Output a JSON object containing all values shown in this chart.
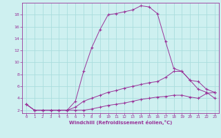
{
  "xlabel": "Windchill (Refroidissement éolien,°C)",
  "bg_color": "#cef0f0",
  "line_color": "#993399",
  "grid_color": "#aadddd",
  "xlim": [
    -0.5,
    23.5
  ],
  "ylim": [
    1.5,
    20.0
  ],
  "yticks": [
    2,
    4,
    6,
    8,
    10,
    12,
    14,
    16,
    18
  ],
  "xticks": [
    0,
    1,
    2,
    3,
    4,
    5,
    6,
    7,
    8,
    9,
    10,
    11,
    12,
    13,
    14,
    15,
    16,
    17,
    18,
    19,
    20,
    21,
    22,
    23
  ],
  "line1_x": [
    0,
    1,
    2,
    3,
    4,
    5,
    6,
    7,
    8,
    9,
    10,
    11,
    12,
    13,
    14,
    15,
    16,
    17,
    18,
    19,
    20,
    21,
    22,
    23
  ],
  "line1_y": [
    3.0,
    2.0,
    2.0,
    2.0,
    2.0,
    2.0,
    3.5,
    8.5,
    12.5,
    15.5,
    18.0,
    18.2,
    18.5,
    18.8,
    19.5,
    19.3,
    18.2,
    13.5,
    9.0,
    8.5,
    7.0,
    5.5,
    5.0,
    4.0
  ],
  "line2_x": [
    0,
    1,
    2,
    3,
    4,
    5,
    6,
    7,
    8,
    9,
    10,
    11,
    12,
    13,
    14,
    15,
    16,
    17,
    18,
    19,
    20,
    21,
    22,
    23
  ],
  "line2_y": [
    3.0,
    2.0,
    2.0,
    2.0,
    2.0,
    2.0,
    2.5,
    3.5,
    4.0,
    4.5,
    5.0,
    5.3,
    5.7,
    6.0,
    6.3,
    6.6,
    6.8,
    7.5,
    8.5,
    8.5,
    7.0,
    6.8,
    5.5,
    5.0
  ],
  "line3_x": [
    0,
    1,
    2,
    3,
    4,
    5,
    6,
    7,
    8,
    9,
    10,
    11,
    12,
    13,
    14,
    15,
    16,
    17,
    18,
    19,
    20,
    21,
    22,
    23
  ],
  "line3_y": [
    3.0,
    2.0,
    2.0,
    2.0,
    2.0,
    2.0,
    2.0,
    2.0,
    2.2,
    2.5,
    2.8,
    3.0,
    3.2,
    3.5,
    3.8,
    4.0,
    4.2,
    4.3,
    4.5,
    4.5,
    4.2,
    4.0,
    4.8,
    5.0
  ]
}
